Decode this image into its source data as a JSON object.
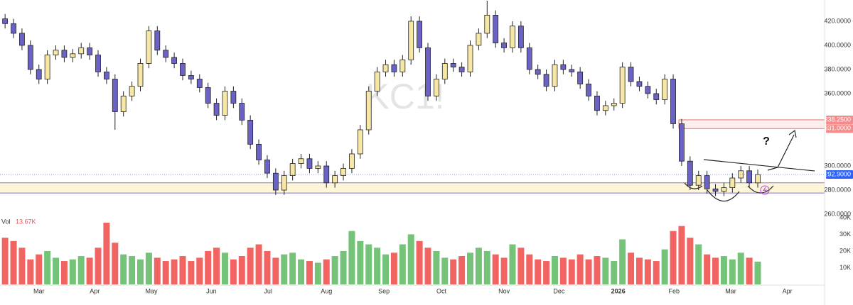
{
  "chart_data": {
    "type": "candlestick",
    "watermark": "KC1!",
    "open": [
      422,
      418,
      410,
      400,
      380,
      372,
      392,
      396,
      390,
      393,
      398,
      392,
      378,
      372,
      345,
      358,
      366,
      385,
      412,
      396,
      390,
      385,
      375,
      372,
      365,
      352,
      342,
      362,
      352,
      338,
      318,
      305,
      294,
      280,
      292,
      302,
      306,
      298,
      300,
      286,
      292,
      298,
      310,
      330,
      362,
      378,
      384,
      378,
      388,
      420,
      398,
      358,
      372,
      385,
      382,
      378,
      400,
      410,
      425,
      402,
      398,
      416,
      398,
      380,
      376,
      366,
      384,
      380,
      378,
      368,
      358,
      346,
      350,
      352,
      382,
      370,
      366,
      360,
      355,
      372,
      335,
      304,
      284,
      292,
      281,
      279,
      282,
      290,
      296,
      286
    ],
    "high": [
      426,
      422,
      414,
      404,
      384,
      396,
      400,
      400,
      397,
      402,
      402,
      396,
      382,
      376,
      362,
      370,
      389,
      416,
      416,
      400,
      394,
      389,
      379,
      376,
      369,
      356,
      366,
      366,
      356,
      342,
      322,
      309,
      298,
      296,
      306,
      310,
      310,
      304,
      304,
      296,
      302,
      314,
      334,
      366,
      382,
      388,
      388,
      392,
      424,
      424,
      402,
      376,
      389,
      389,
      386,
      404,
      414,
      437,
      429,
      406,
      420,
      420,
      402,
      384,
      380,
      388,
      388,
      384,
      382,
      372,
      362,
      354,
      356,
      386,
      386,
      374,
      370,
      364,
      376,
      376,
      339,
      308,
      296,
      296,
      285,
      286,
      294,
      300,
      300,
      297
    ],
    "low": [
      414,
      406,
      396,
      376,
      368,
      368,
      388,
      386,
      386,
      389,
      388,
      374,
      368,
      330,
      341,
      354,
      362,
      381,
      392,
      386,
      381,
      371,
      368,
      361,
      348,
      338,
      338,
      348,
      334,
      314,
      301,
      290,
      276,
      276,
      288,
      298,
      294,
      294,
      282,
      282,
      288,
      294,
      306,
      326,
      358,
      374,
      374,
      374,
      384,
      394,
      354,
      354,
      368,
      378,
      374,
      374,
      396,
      406,
      398,
      394,
      394,
      394,
      376,
      372,
      362,
      362,
      376,
      374,
      364,
      354,
      342,
      342,
      346,
      348,
      366,
      362,
      356,
      351,
      351,
      331,
      300,
      280,
      280,
      277,
      275,
      275,
      278,
      286,
      282,
      282
    ],
    "close": [
      418,
      410,
      400,
      380,
      372,
      392,
      396,
      390,
      393,
      398,
      392,
      378,
      372,
      345,
      358,
      366,
      385,
      412,
      396,
      390,
      385,
      375,
      372,
      365,
      352,
      342,
      362,
      352,
      338,
      318,
      305,
      294,
      280,
      292,
      302,
      306,
      298,
      300,
      286,
      292,
      298,
      310,
      330,
      362,
      378,
      384,
      378,
      388,
      420,
      398,
      358,
      372,
      385,
      382,
      378,
      400,
      410,
      425,
      402,
      398,
      416,
      398,
      380,
      376,
      366,
      384,
      380,
      378,
      368,
      358,
      346,
      350,
      352,
      382,
      370,
      366,
      360,
      355,
      372,
      335,
      304,
      284,
      292,
      281,
      279,
      282,
      290,
      296,
      286,
      292.9
    ],
    "volume": {
      "label": "Vol",
      "last_label": "13.67K",
      "values": [
        28000,
        26000,
        22000,
        15000,
        18000,
        20000,
        16000,
        14000,
        15000,
        17000,
        16000,
        22000,
        37000,
        25000,
        18000,
        17000,
        15000,
        19000,
        16000,
        14000,
        15000,
        17000,
        14000,
        16000,
        20000,
        22000,
        19000,
        15000,
        17000,
        22000,
        24000,
        20000,
        16000,
        18000,
        19000,
        15000,
        14000,
        13000,
        15000,
        17000,
        20000,
        32000,
        26000,
        24000,
        22000,
        18000,
        19000,
        24000,
        30000,
        26000,
        22000,
        20000,
        16000,
        15000,
        17000,
        19000,
        22000,
        20000,
        18000,
        16000,
        24000,
        22000,
        18000,
        15000,
        14000,
        17000,
        16000,
        15000,
        18000,
        15000,
        17000,
        16000,
        14000,
        27000,
        19000,
        16000,
        15000,
        14000,
        21000,
        32000,
        35000,
        28000,
        24000,
        18000,
        16000,
        17000,
        15000,
        19000,
        16000,
        13670
      ],
      "ylim": [
        0,
        40800
      ],
      "yticks": [
        {
          "value": 10000,
          "label": "10K"
        },
        {
          "value": 20000,
          "label": "20K"
        },
        {
          "value": 30000,
          "label": "30K"
        },
        {
          "value": 40000,
          "label": "40K"
        }
      ],
      "up_color": "#66bb6a",
      "down_color": "#ef5350"
    },
    "up_color": "#f6e7a6",
    "down_color": "#6b63c4",
    "outline_color": "#222222",
    "xlim": [
      -0.6,
      96.9
    ],
    "xticks": [
      {
        "value": 4.0,
        "label": "Mar"
      },
      {
        "value": 10.6,
        "label": "Apr"
      },
      {
        "value": 17.3,
        "label": "May"
      },
      {
        "value": 24.4,
        "label": "Jun"
      },
      {
        "value": 31.1,
        "label": "Jul"
      },
      {
        "value": 38.0,
        "label": "Aug"
      },
      {
        "value": 44.8,
        "label": "Sep"
      },
      {
        "value": 51.6,
        "label": "Oct"
      },
      {
        "value": 59.0,
        "label": "Nov"
      },
      {
        "value": 65.5,
        "label": "Dec"
      },
      {
        "value": 72.5,
        "label": "2026"
      },
      {
        "value": 79.1,
        "label": "Feb"
      },
      {
        "value": 85.8,
        "label": "Mar"
      },
      {
        "value": 92.5,
        "label": "Apr"
      }
    ],
    "ylim": [
      255.3,
      437.6
    ],
    "yticks": [
      {
        "value": 260,
        "label": "260.0000"
      },
      {
        "value": 280,
        "label": "280.0000"
      },
      {
        "value": 300,
        "label": "300.0000"
      },
      {
        "value": 360,
        "label": "360.0000"
      },
      {
        "value": 380,
        "label": "380.0000"
      },
      {
        "value": 400,
        "label": "400.0000"
      },
      {
        "value": 420,
        "label": "420.0000"
      }
    ],
    "resistance_zone": [
      331,
      338.25
    ],
    "support_zone": [
      277.6,
      286
    ],
    "price_labels": [
      {
        "value": 338.25,
        "label": "338.2500",
        "color": "#f28b8b"
      },
      {
        "value": 331,
        "label": "331.0000",
        "color": "#f28b8b"
      },
      {
        "value": 292.9,
        "label": "292.9000",
        "color": "#2962ff"
      }
    ],
    "annotation": "?"
  }
}
